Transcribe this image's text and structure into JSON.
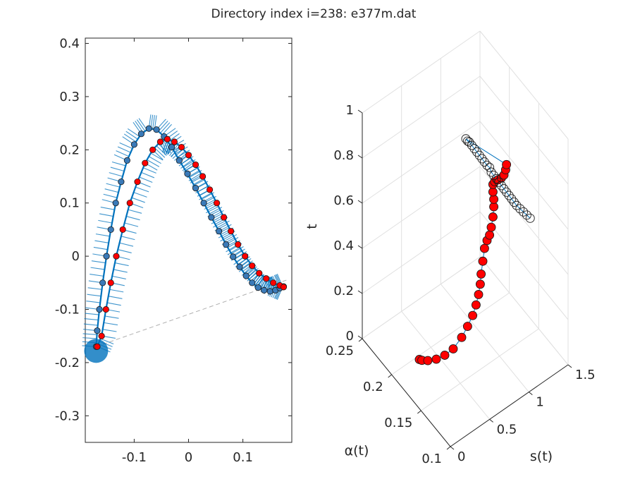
{
  "figure": {
    "title": "Directory index i=238: e377m.dat"
  },
  "chart_data": [
    {
      "type": "line",
      "subplot": "left",
      "xlim": [
        -0.19,
        0.19
      ],
      "ylim": [
        -0.35,
        0.41
      ],
      "xticks": [
        -0.1,
        0,
        0.1
      ],
      "yticks": [
        -0.3,
        -0.2,
        -0.1,
        0,
        0.1,
        0.2,
        0.3,
        0.4
      ],
      "xtick_labels": [
        "-0.1",
        "0",
        "0.1"
      ],
      "ytick_labels": [
        "-0.3",
        "-0.2",
        "-0.1",
        "0",
        "0.1",
        "0.2",
        "0.3",
        "0.4"
      ],
      "grid": false,
      "colors": {
        "curve": "#0072bd",
        "red": "#ff0000",
        "chord": "#b0b0b0"
      },
      "series": [
        {
          "role": "outer",
          "x": [
            -0.17,
            -0.168,
            -0.164,
            -0.158,
            -0.151,
            -0.143,
            -0.134,
            -0.124,
            -0.113,
            -0.1,
            -0.087,
            -0.073,
            -0.059,
            -0.045,
            -0.031,
            -0.017,
            -0.002,
            0.013,
            0.028,
            0.042,
            0.056,
            0.069,
            0.082,
            0.094,
            0.106,
            0.117,
            0.128,
            0.139,
            0.15,
            0.16,
            0.168,
            0.175
          ],
          "y": [
            -0.17,
            -0.14,
            -0.1,
            -0.05,
            0.0,
            0.05,
            0.1,
            0.14,
            0.18,
            0.21,
            0.23,
            0.24,
            0.238,
            0.225,
            0.205,
            0.18,
            0.155,
            0.128,
            0.1,
            0.073,
            0.047,
            0.022,
            -0.001,
            -0.02,
            -0.037,
            -0.05,
            -0.059,
            -0.064,
            -0.066,
            -0.064,
            -0.06,
            -0.057
          ]
        },
        {
          "role": "inner",
          "x": [
            -0.168,
            -0.16,
            -0.152,
            -0.143,
            -0.133,
            -0.121,
            -0.108,
            -0.094,
            -0.08,
            -0.066,
            -0.052,
            -0.039,
            -0.026,
            -0.013,
            0.0,
            0.013,
            0.026,
            0.039,
            0.052,
            0.065,
            0.078,
            0.091,
            0.104,
            0.117,
            0.13,
            0.143,
            0.156,
            0.168,
            0.175
          ],
          "y": [
            -0.17,
            -0.15,
            -0.1,
            -0.05,
            0.0,
            0.05,
            0.1,
            0.14,
            0.175,
            0.2,
            0.215,
            0.22,
            0.215,
            0.205,
            0.19,
            0.172,
            0.15,
            0.125,
            0.1,
            0.073,
            0.047,
            0.022,
            0.0,
            -0.018,
            -0.032,
            -0.042,
            -0.05,
            -0.055,
            -0.058
          ]
        },
        {
          "role": "chord",
          "x": [
            -0.17,
            0.18
          ],
          "y": [
            -0.17,
            -0.045
          ]
        }
      ]
    },
    {
      "type": "line",
      "subplot": "right",
      "projection": "3d",
      "xlabel": "s(t)",
      "ylabel": "α(t)",
      "zlabel": "t",
      "xlim": [
        0,
        1.5
      ],
      "ylim": [
        0.1,
        0.25
      ],
      "zlim": [
        0,
        1
      ],
      "s_tick_labels": [
        "0",
        "0.5",
        "1",
        "1.5"
      ],
      "alpha_tick_labels": [
        "0.1",
        "0.15",
        "0.2",
        "0.25"
      ],
      "t_tick_labels": [
        "0",
        "0.2",
        "0.4",
        "0.6",
        "0.8",
        "1"
      ],
      "grid": true,
      "series": [
        {
          "role": "black-markers",
          "s": [
            0.6,
            0.62,
            0.64,
            0.67,
            0.7,
            0.73,
            0.76,
            0.79,
            0.82,
            0.85,
            0.88,
            0.9,
            0.93,
            0.96,
            0.99,
            1.02,
            1.05,
            1.08,
            1.11,
            1.14,
            1.17,
            1.2,
            1.24,
            1.28,
            1.32,
            1.36
          ],
          "alpha": [
            0.16,
            0.16,
            0.16,
            0.16,
            0.16,
            0.16,
            0.16,
            0.16,
            0.16,
            0.16,
            0.16,
            0.16,
            0.16,
            0.16,
            0.16,
            0.16,
            0.16,
            0.16,
            0.16,
            0.16,
            0.16,
            0.16,
            0.16,
            0.16,
            0.16,
            0.16
          ],
          "t": [
            0.95,
            0.94,
            0.935,
            0.92,
            0.905,
            0.89,
            0.875,
            0.86,
            0.845,
            0.83,
            0.82,
            0.8,
            0.785,
            0.77,
            0.755,
            0.74,
            0.725,
            0.71,
            0.695,
            0.68,
            0.665,
            0.65,
            0.635,
            0.62,
            0.605,
            0.59
          ]
        },
        {
          "role": "red-markers",
          "s": [
            0.05,
            0.08,
            0.15,
            0.25,
            0.35,
            0.45,
            0.55,
            0.62,
            0.68,
            0.72,
            0.75,
            0.77,
            0.78,
            0.8,
            0.82,
            0.85,
            0.88,
            0.9,
            0.92,
            0.93,
            0.93,
            0.92,
            0.92,
            0.94,
            0.98,
            1.02,
            1.05,
            1.07,
            1.08
          ],
          "alpha": [
            0.16,
            0.16,
            0.16,
            0.16,
            0.16,
            0.16,
            0.16,
            0.16,
            0.16,
            0.16,
            0.16,
            0.16,
            0.16,
            0.16,
            0.16,
            0.16,
            0.16,
            0.16,
            0.16,
            0.16,
            0.16,
            0.16,
            0.16,
            0.16,
            0.16,
            0.16,
            0.16,
            0.16,
            0.16
          ],
          "t": [
            0.1,
            0.095,
            0.09,
            0.09,
            0.1,
            0.12,
            0.16,
            0.2,
            0.24,
            0.28,
            0.32,
            0.36,
            0.4,
            0.45,
            0.5,
            0.53,
            0.55,
            0.58,
            0.62,
            0.66,
            0.69,
            0.72,
            0.75,
            0.76,
            0.765,
            0.77,
            0.78,
            0.8,
            0.82
          ]
        }
      ]
    }
  ]
}
